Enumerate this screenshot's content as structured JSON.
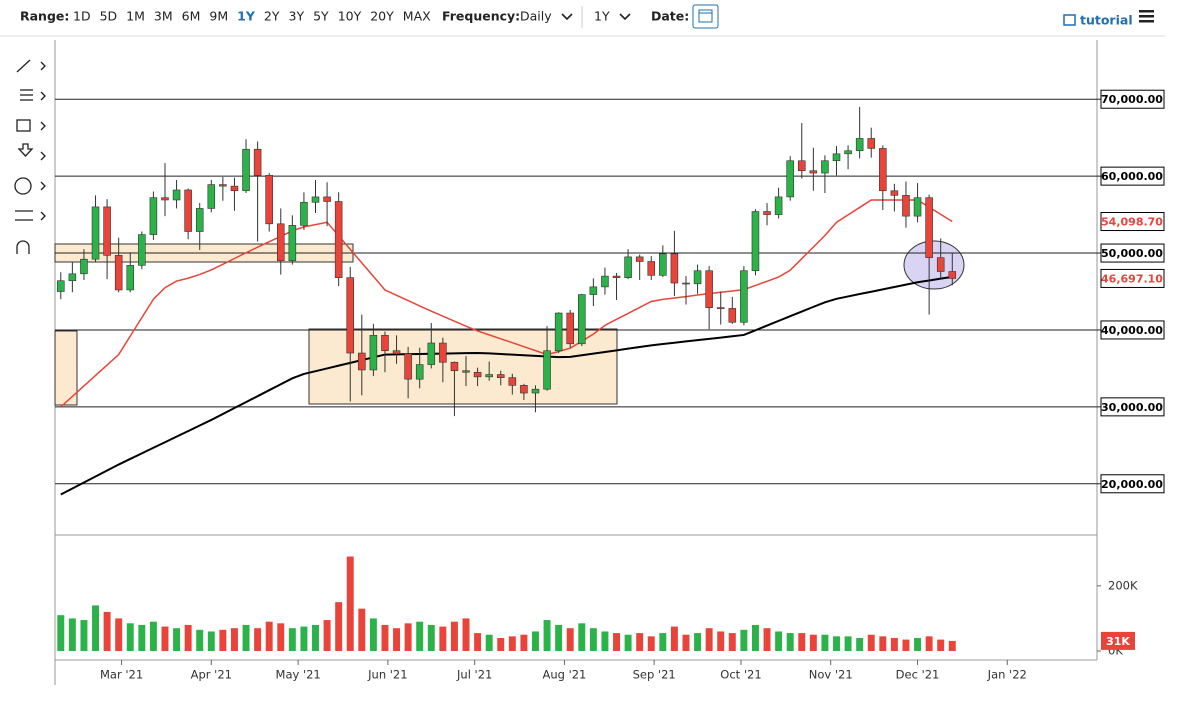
{
  "toolbar": {
    "range_label": "Range:",
    "ranges": [
      "1D",
      "5D",
      "1M",
      "3M",
      "6M",
      "9M",
      "1Y",
      "2Y",
      "3Y",
      "5Y",
      "10Y",
      "20Y",
      "MAX"
    ],
    "active_range": "1Y",
    "frequency_label": "Frequency:",
    "frequency": "Daily",
    "period": "1Y",
    "date_label": "Date:",
    "tutorial": "tutorial"
  },
  "chart_data": {
    "type": "candlestick",
    "up_color": "#2bb34a",
    "down_color": "#e8443a",
    "candles": [
      [
        45000,
        47500,
        44000,
        46400
      ],
      [
        46400,
        48900,
        44900,
        47300
      ],
      [
        47300,
        50500,
        46500,
        49200
      ],
      [
        49200,
        57500,
        48800,
        56000
      ],
      [
        56000,
        57000,
        46600,
        49700
      ],
      [
        49700,
        52000,
        44900,
        45200
      ],
      [
        45200,
        50100,
        44900,
        48400
      ],
      [
        48400,
        52800,
        47900,
        52400
      ],
      [
        52400,
        58000,
        51700,
        57200
      ],
      [
        57200,
        61700,
        54800,
        56900
      ],
      [
        56900,
        59500,
        55800,
        58200
      ],
      [
        58200,
        58400,
        51800,
        52800
      ],
      [
        52800,
        56500,
        50400,
        55800
      ],
      [
        55800,
        59500,
        55300,
        58900
      ],
      [
        58900,
        59900,
        56800,
        58700
      ],
      [
        58700,
        59800,
        55500,
        58100
      ],
      [
        58100,
        64800,
        57800,
        63500
      ],
      [
        63500,
        64500,
        51500,
        60100
      ],
      [
        60100,
        60400,
        52800,
        53800
      ],
      [
        53800,
        55800,
        47200,
        49000
      ],
      [
        49000,
        54900,
        48500,
        53600
      ],
      [
        53600,
        57900,
        53000,
        56600
      ],
      [
        56600,
        59500,
        55200,
        57300
      ],
      [
        57300,
        59200,
        53500,
        56700
      ],
      [
        56700,
        57900,
        45700,
        46800
      ],
      [
        46800,
        48200,
        30700,
        37000
      ],
      [
        37000,
        42000,
        31500,
        34800
      ],
      [
        34800,
        40800,
        34000,
        39300
      ],
      [
        39300,
        39800,
        34500,
        37300
      ],
      [
        37300,
        39300,
        35600,
        36900
      ],
      [
        36900,
        37800,
        31100,
        33600
      ],
      [
        33600,
        37700,
        32400,
        35500
      ],
      [
        35500,
        40900,
        35000,
        38300
      ],
      [
        38300,
        39000,
        33200,
        35800
      ],
      [
        35800,
        35900,
        28800,
        34700
      ],
      [
        34700,
        36600,
        32700,
        34500
      ],
      [
        34500,
        35100,
        32700,
        33900
      ],
      [
        33900,
        35900,
        33400,
        34200
      ],
      [
        34200,
        34700,
        32800,
        33800
      ],
      [
        33800,
        34300,
        31600,
        32800
      ],
      [
        32800,
        33000,
        30900,
        31800
      ],
      [
        31800,
        32800,
        29300,
        32300
      ],
      [
        32300,
        40500,
        32100,
        37300
      ],
      [
        37300,
        42300,
        37000,
        42200
      ],
      [
        42200,
        42600,
        37700,
        38200
      ],
      [
        38200,
        44700,
        37900,
        44600
      ],
      [
        44600,
        46700,
        43100,
        45600
      ],
      [
        45600,
        48100,
        44600,
        47000
      ],
      [
        47000,
        47400,
        43900,
        46800
      ],
      [
        46800,
        50500,
        46600,
        49500
      ],
      [
        49500,
        49800,
        46500,
        48900
      ],
      [
        48900,
        49600,
        46500,
        47100
      ],
      [
        47100,
        51000,
        46900,
        49900
      ],
      [
        49900,
        52900,
        44400,
        46100
      ],
      [
        46100,
        47000,
        43300,
        46000
      ],
      [
        46000,
        48500,
        44700,
        47700
      ],
      [
        47700,
        48300,
        40100,
        42900
      ],
      [
        42900,
        45000,
        40700,
        42800
      ],
      [
        42800,
        44300,
        40800,
        41000
      ],
      [
        41000,
        48300,
        40600,
        47700
      ],
      [
        47700,
        55700,
        47100,
        55400
      ],
      [
        55400,
        56500,
        53600,
        55000
      ],
      [
        55000,
        58500,
        54500,
        57300
      ],
      [
        57300,
        62600,
        56800,
        62000
      ],
      [
        62000,
        66900,
        59700,
        60700
      ],
      [
        60700,
        63700,
        58100,
        60400
      ],
      [
        60400,
        62700,
        57800,
        62000
      ],
      [
        62000,
        63900,
        60100,
        62900
      ],
      [
        62900,
        64000,
        60900,
        63300
      ],
      [
        63300,
        69000,
        62300,
        64900
      ],
      [
        64900,
        66300,
        62400,
        63600
      ],
      [
        63600,
        64000,
        55600,
        58100
      ],
      [
        58100,
        59000,
        55400,
        57500
      ],
      [
        57500,
        59300,
        53300,
        54800
      ],
      [
        54800,
        59100,
        54000,
        57200
      ],
      [
        57200,
        57600,
        42000,
        49400
      ],
      [
        49400,
        51900,
        46800,
        47600
      ],
      [
        47600,
        50000,
        45800,
        46697.1
      ]
    ],
    "moving_averages": [
      {
        "color": "#e8443a",
        "values": [
          30000,
          31360,
          32720,
          34080,
          35440,
          36800,
          39200,
          41600,
          44000,
          45490,
          46360,
          46720,
          47220,
          47800,
          48540,
          49290,
          50030,
          50760,
          51470,
          52180,
          52890,
          53400,
          53700,
          54000,
          52240,
          50480,
          48720,
          46960,
          45200,
          44510,
          43820,
          43120,
          42440,
          41790,
          41140,
          40490,
          39870,
          39360,
          38850,
          38340,
          37820,
          37310,
          36800,
          37200,
          37630,
          38540,
          39460,
          40600,
          41380,
          42150,
          42930,
          43700,
          43980,
          44150,
          44330,
          44540,
          44720,
          44900,
          45070,
          45240,
          45790,
          46330,
          46880,
          47760,
          49270,
          50770,
          52280,
          53990,
          54960,
          55930,
          56900,
          56900,
          56900,
          56900,
          56900,
          55970,
          55030,
          54100
        ]
      },
      {
        "color": "#000000",
        "values": [
          18600,
          19380,
          20160,
          20940,
          21720,
          22500,
          23230,
          23950,
          24680,
          25400,
          26130,
          26850,
          27580,
          28300,
          29070,
          29850,
          30620,
          31390,
          32170,
          32940,
          33710,
          34280,
          34640,
          35000,
          35360,
          35720,
          36080,
          36440,
          36800,
          36830,
          36850,
          36880,
          36900,
          36930,
          36950,
          36980,
          37000,
          36950,
          36870,
          36790,
          36710,
          36630,
          36550,
          36470,
          36500,
          36710,
          36920,
          37140,
          37350,
          37570,
          37780,
          38000,
          38170,
          38340,
          38510,
          38680,
          38840,
          39010,
          39180,
          39350,
          39960,
          40570,
          41180,
          41790,
          42390,
          43000,
          43600,
          44050,
          44360,
          44670,
          44970,
          45280,
          45590,
          45890,
          46200,
          46430,
          46670,
          46900
        ]
      }
    ],
    "ma_label": {
      "value": 54098.7,
      "label": "54,098.70"
    },
    "last_price": {
      "value": 46697.1,
      "label": "46,697.10"
    },
    "xlim": [
      -0.5,
      89.5
    ],
    "xticks": [
      {
        "value": 5.25,
        "label": "Mar '21"
      },
      {
        "value": 13,
        "label": "Apr '21"
      },
      {
        "value": 20.5,
        "label": "May '21"
      },
      {
        "value": 28.25,
        "label": "Jun '21"
      },
      {
        "value": 35.75,
        "label": "Jul '21"
      },
      {
        "value": 43.5,
        "label": "Aug '21"
      },
      {
        "value": 51.25,
        "label": "Sep '21"
      },
      {
        "value": 58.75,
        "label": "Oct '21"
      },
      {
        "value": 66.5,
        "label": "Nov '21"
      },
      {
        "value": 74,
        "label": "Dec '21"
      },
      {
        "value": 81.75,
        "label": "Jan '22"
      }
    ],
    "ylim": [
      13600,
      77700
    ],
    "yticks": [
      {
        "value": 70000,
        "label": "70,000.00"
      },
      {
        "value": 60000,
        "label": "60,000.00"
      },
      {
        "value": 50000,
        "label": "50,000.00"
      },
      {
        "value": 40000,
        "label": "40,000.00"
      },
      {
        "value": 30000,
        "label": "30,000.00"
      },
      {
        "value": 20000,
        "label": "20,000.00"
      }
    ],
    "grid": true,
    "volume": {
      "values": [
        110,
        100,
        95,
        140,
        120,
        100,
        85,
        80,
        90,
        75,
        70,
        80,
        65,
        60,
        65,
        70,
        80,
        70,
        90,
        85,
        70,
        75,
        80,
        95,
        150,
        290,
        130,
        100,
        80,
        70,
        85,
        90,
        80,
        75,
        90,
        100,
        55,
        50,
        40,
        45,
        50,
        60,
        95,
        80,
        70,
        85,
        70,
        60,
        55,
        50,
        55,
        45,
        55,
        75,
        50,
        55,
        70,
        60,
        55,
        65,
        80,
        70,
        60,
        55,
        55,
        50,
        50,
        45,
        45,
        40,
        50,
        45,
        40,
        35,
        40,
        45,
        35,
        31
      ],
      "ylim": [
        0,
        350
      ],
      "yticks": [
        {
          "value": 200,
          "label": "200K"
        },
        {
          "value": 0,
          "label": "0K"
        }
      ],
      "last": {
        "value": 31,
        "label": "31K"
      }
    }
  }
}
